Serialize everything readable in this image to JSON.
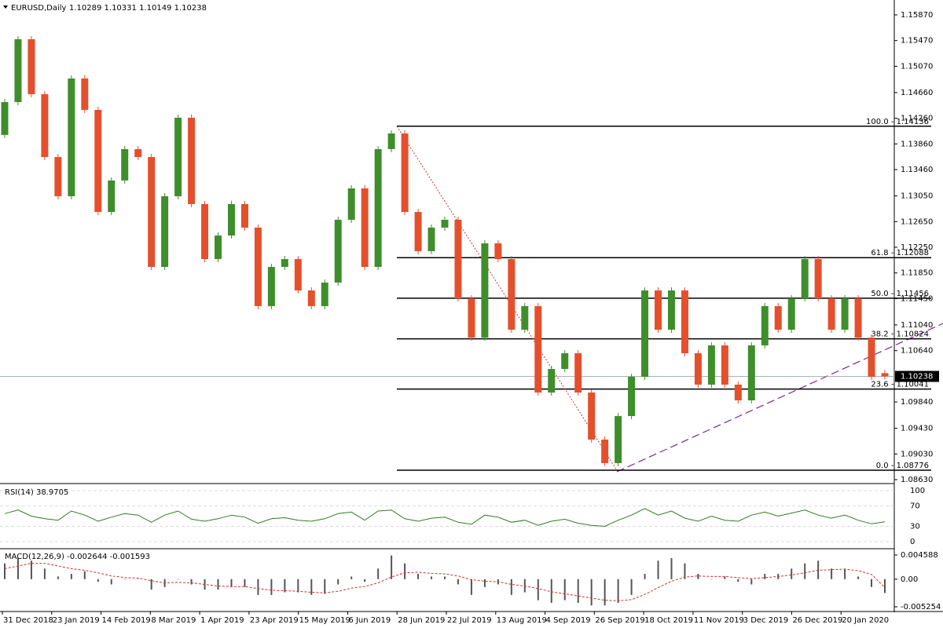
{
  "chart_data": {
    "type": "candlestick",
    "title": "EURUSD,Daily",
    "ohlc_text": "1.10289 1.10331 1.10149 1.10238",
    "up_color": "#3f8e2c",
    "down_color": "#e4502c",
    "open": [
      1.14,
      1.14512,
      1.15491,
      1.14635,
      1.13656,
      1.13045,
      1.14879,
      1.1439,
      1.128,
      1.1329,
      1.13779,
      1.13656,
      1.11944,
      1.13045,
      1.14268,
      1.12923,
      1.12066,
      1.12433,
      1.12923,
      1.12556,
      1.11333,
      1.11944,
      1.12066,
      1.11577,
      1.11333,
      1.117,
      1.12678,
      1.13167,
      1.11944,
      1.13779,
      1.14023,
      1.128,
      1.12189,
      1.12556,
      1.12678,
      1.11455,
      1.10843,
      1.12311,
      1.12066,
      1.10966,
      1.11333,
      1.09987,
      1.10354,
      1.10599,
      1.09987,
      1.09254,
      1.08887,
      1.0962,
      1.10232,
      1.11577,
      1.10966,
      1.11577,
      1.10599,
      1.1011,
      1.10721,
      1.1011,
      1.09865,
      1.10721,
      1.11333,
      1.10966,
      1.11455,
      1.12066,
      1.11455,
      1.10966,
      1.11455,
      1.10843,
      1.10289
    ],
    "close": [
      1.14512,
      1.15491,
      1.14635,
      1.13656,
      1.13045,
      1.14879,
      1.1439,
      1.128,
      1.1329,
      1.13779,
      1.13656,
      1.11944,
      1.13045,
      1.14268,
      1.12923,
      1.12066,
      1.12433,
      1.12923,
      1.12556,
      1.11333,
      1.11944,
      1.12066,
      1.11577,
      1.11333,
      1.117,
      1.12678,
      1.13167,
      1.11944,
      1.13779,
      1.14023,
      1.128,
      1.12189,
      1.12556,
      1.12678,
      1.11455,
      1.10843,
      1.12311,
      1.12066,
      1.10966,
      1.11333,
      1.09987,
      1.10354,
      1.10599,
      1.09987,
      1.09254,
      1.08887,
      1.0962,
      1.10232,
      1.11577,
      1.10966,
      1.11577,
      1.10599,
      1.1011,
      1.10721,
      1.1011,
      1.09865,
      1.10721,
      1.11333,
      1.10966,
      1.11455,
      1.12066,
      1.11455,
      1.10966,
      1.11455,
      1.10843,
      1.10232,
      1.10238
    ],
    "ylim": [
      1.08581,
      1.16102
    ],
    "yticks": [
      {
        "value": 1.1587,
        "label": "1.15870"
      },
      {
        "value": 1.1547,
        "label": "1.15470"
      },
      {
        "value": 1.1507,
        "label": "1.15070"
      },
      {
        "value": 1.1466,
        "label": "1.14660"
      },
      {
        "value": 1.1426,
        "label": "1.14260"
      },
      {
        "value": 1.1386,
        "label": "1.13860"
      },
      {
        "value": 1.1346,
        "label": "1.13460"
      },
      {
        "value": 1.1305,
        "label": "1.13050"
      },
      {
        "value": 1.1265,
        "label": "1.12650"
      },
      {
        "value": 1.1225,
        "label": "1.12250"
      },
      {
        "value": 1.1185,
        "label": "1.11850"
      },
      {
        "value": 1.1145,
        "label": "1.11450"
      },
      {
        "value": 1.1104,
        "label": "1.11040"
      },
      {
        "value": 1.1064,
        "label": "1.10640"
      },
      {
        "value": 1.0984,
        "label": "1.09840"
      },
      {
        "value": 1.0943,
        "label": "1.09430"
      },
      {
        "value": 1.0903,
        "label": "1.09030"
      },
      {
        "value": 1.0863,
        "label": "1.08630"
      }
    ],
    "last_price": {
      "value": 1.10238,
      "label": "1.10238"
    },
    "fib_levels": [
      {
        "value": 1.14136,
        "label": "100.0 - 1.14136"
      },
      {
        "value": 1.12088,
        "label": "61.8 - 1.12088"
      },
      {
        "value": 1.11456,
        "label": "50.0 - 1.11456"
      },
      {
        "value": 1.10824,
        "label": "38.2 - 1.10824"
      },
      {
        "value": 1.10041,
        "label": "23.6 - 1.10041"
      },
      {
        "value": 1.08776,
        "label": "0.0 - 1.08776"
      }
    ],
    "x_labels": [
      "31 Dec 2018",
      "23 Jan 2019",
      "14 Feb 2019",
      "8 Mar 2019",
      "1 Apr 2019",
      "23 Apr 2019",
      "15 May 2019",
      "6 Jun 2019",
      "28 Jun 2019",
      "22 Jul 2019",
      "13 Aug 2019",
      "4 Sep 2019",
      "26 Sep 2019",
      "18 Oct 2019",
      "11 Nov 2019",
      "3 Dec 2019",
      "26 Dec 2019",
      "20 Jan 2020"
    ],
    "rsi": {
      "title": "RSI(14) 38.9705",
      "color": "#2e7d1e",
      "ylim": [
        0,
        100
      ],
      "yticks": [
        100,
        70,
        30,
        0
      ],
      "values": [
        55,
        62,
        50,
        45,
        42,
        60,
        52,
        40,
        48,
        55,
        52,
        38,
        52,
        60,
        44,
        40,
        45,
        52,
        48,
        36,
        45,
        47,
        42,
        40,
        45,
        55,
        58,
        42,
        60,
        62,
        45,
        40,
        46,
        48,
        38,
        34,
        52,
        48,
        38,
        42,
        32,
        40,
        44,
        36,
        32,
        30,
        42,
        52,
        65,
        52,
        60,
        46,
        40,
        50,
        42,
        40,
        52,
        58,
        50,
        56,
        62,
        52,
        46,
        52,
        42,
        35,
        38.9705
      ]
    },
    "macd": {
      "title": "MACD(12,26,9) -0.002644 -0.001593",
      "hist_color": "#555555",
      "signal_color": "#d03030",
      "ylim": [
        -0.005254,
        0.004588
      ],
      "yticks": [
        {
          "value": 0.004588,
          "label": "0.004588"
        },
        {
          "value": 0,
          "label": "0.00"
        },
        {
          "value": -0.005254,
          "label": "-0.005254"
        }
      ],
      "hist": [
        0.003,
        0.004,
        0.0035,
        0.002,
        0.0005,
        0.001,
        0.0015,
        -0.0005,
        -0.001,
        0,
        0,
        -0.002,
        -0.0015,
        0,
        -0.001,
        -0.002,
        -0.002,
        -0.0015,
        -0.0015,
        -0.003,
        -0.003,
        -0.0025,
        -0.0025,
        -0.003,
        -0.0028,
        -0.001,
        0.0005,
        -0.0005,
        0.002,
        0.0045,
        0.003,
        0.001,
        0.0005,
        0.0005,
        -0.001,
        -0.003,
        -0.0015,
        -0.001,
        -0.003,
        -0.0025,
        -0.004,
        -0.0045,
        -0.004,
        -0.0045,
        -0.005,
        -0.005,
        -0.0045,
        -0.003,
        0.001,
        0.0035,
        0.004,
        0.003,
        0.001,
        0,
        0.0005,
        -0.0005,
        -0.001,
        0.001,
        0.001,
        0.002,
        0.003,
        0.0035,
        0.002,
        0.002,
        0.0005,
        -0.0015,
        -0.002644
      ],
      "signal": [
        0.002,
        0.0025,
        0.003,
        0.003,
        0.0025,
        0.002,
        0.0017,
        0.0012,
        0.0006,
        0.0003,
        0.0002,
        -0.0003,
        -0.0007,
        -0.0006,
        -0.0007,
        -0.001,
        -0.0013,
        -0.0014,
        -0.0014,
        -0.0018,
        -0.0021,
        -0.0022,
        -0.0023,
        -0.0025,
        -0.0026,
        -0.0023,
        -0.0017,
        -0.0014,
        -0.0007,
        0.0004,
        0.0012,
        0.0013,
        0.0011,
        0.001,
        0.0006,
        -0.0001,
        -0.0004,
        -0.0005,
        -0.001,
        -0.0013,
        -0.0018,
        -0.0024,
        -0.0028,
        -0.0032,
        -0.0036,
        -0.004,
        -0.0041,
        -0.0039,
        -0.0029,
        -0.0016,
        -0.0004,
        0.0004,
        0.0006,
        0.0005,
        0.0005,
        0.0003,
        0.0001,
        0.0003,
        0.0005,
        0.0008,
        0.0012,
        0.0017,
        0.0018,
        0.0019,
        0.0016,
        0.0009,
        -0.001593
      ]
    }
  }
}
